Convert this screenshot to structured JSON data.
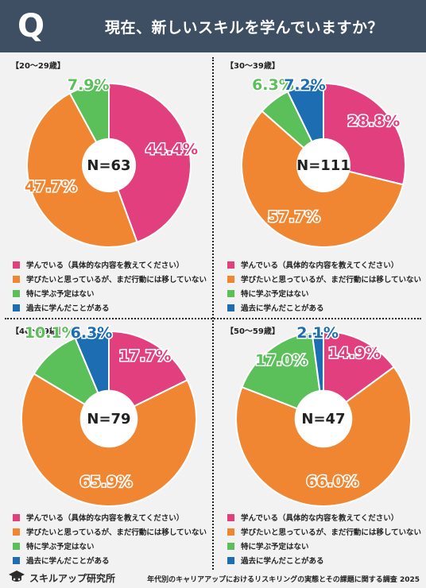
{
  "header": {
    "q_mark": "Q",
    "title": "現在、新しいスキルを学んでいますか？"
  },
  "colors": {
    "header_bg": "#3f4f63",
    "pink": "#e23f7e",
    "orange": "#f08631",
    "green": "#5bbf5a",
    "blue": "#1d6db3"
  },
  "legend": [
    "学んでいる（具体的な内容を教えてください）",
    "学びたいと思っているが、まだ行動には移していない",
    "特に学ぶ予定はない",
    "過去に学んだことがある"
  ],
  "chart_data": [
    {
      "type": "pie",
      "title": "【20～29歳】",
      "center_label": "N=63",
      "categories": [
        "学んでいる（具体的な内容を教えてください）",
        "学びたいと思っているが、まだ行動には移していない",
        "特に学ぶ予定はない",
        "過去に学んだことがある"
      ],
      "values": [
        44.4,
        47.7,
        7.9,
        0
      ],
      "labels": [
        "44.4%",
        "47.7%",
        "7.9%",
        ""
      ]
    },
    {
      "type": "pie",
      "title": "【30～39歳】",
      "center_label": "N=111",
      "categories": [
        "学んでいる（具体的な内容を教えてください）",
        "学びたいと思っているが、まだ行動には移していない",
        "特に学ぶ予定はない",
        "過去に学んだことがある"
      ],
      "values": [
        28.8,
        57.7,
        6.3,
        7.2
      ],
      "labels": [
        "28.8%",
        "57.7%",
        "6.3%",
        "7.2%"
      ]
    },
    {
      "type": "pie",
      "title": "【40～49歳】",
      "center_label": "N=79",
      "categories": [
        "学んでいる（具体的な内容を教えてください）",
        "学びたいと思っているが、まだ行動には移していない",
        "特に学ぶ予定はない",
        "過去に学んだことがある"
      ],
      "values": [
        17.7,
        65.9,
        10.1,
        6.3
      ],
      "labels": [
        "17.7%",
        "65.9%",
        "10.1%",
        "6.3%"
      ]
    },
    {
      "type": "pie",
      "title": "【50～59歳】",
      "center_label": "N=47",
      "categories": [
        "学んでいる（具体的な内容を教えてください）",
        "学びたいと思っているが、まだ行動には移していない",
        "特に学ぶ予定はない",
        "過去に学んだことがある"
      ],
      "values": [
        14.9,
        66.0,
        17.0,
        2.1
      ],
      "labels": [
        "14.9%",
        "66.0%",
        "17.0%",
        "2.1%"
      ]
    }
  ],
  "footer": {
    "logo_text": "スキルアップ研究所",
    "note": "年代別のキャリアアップにおけるリスキリングの実態とその課題に関する調査 2025"
  }
}
